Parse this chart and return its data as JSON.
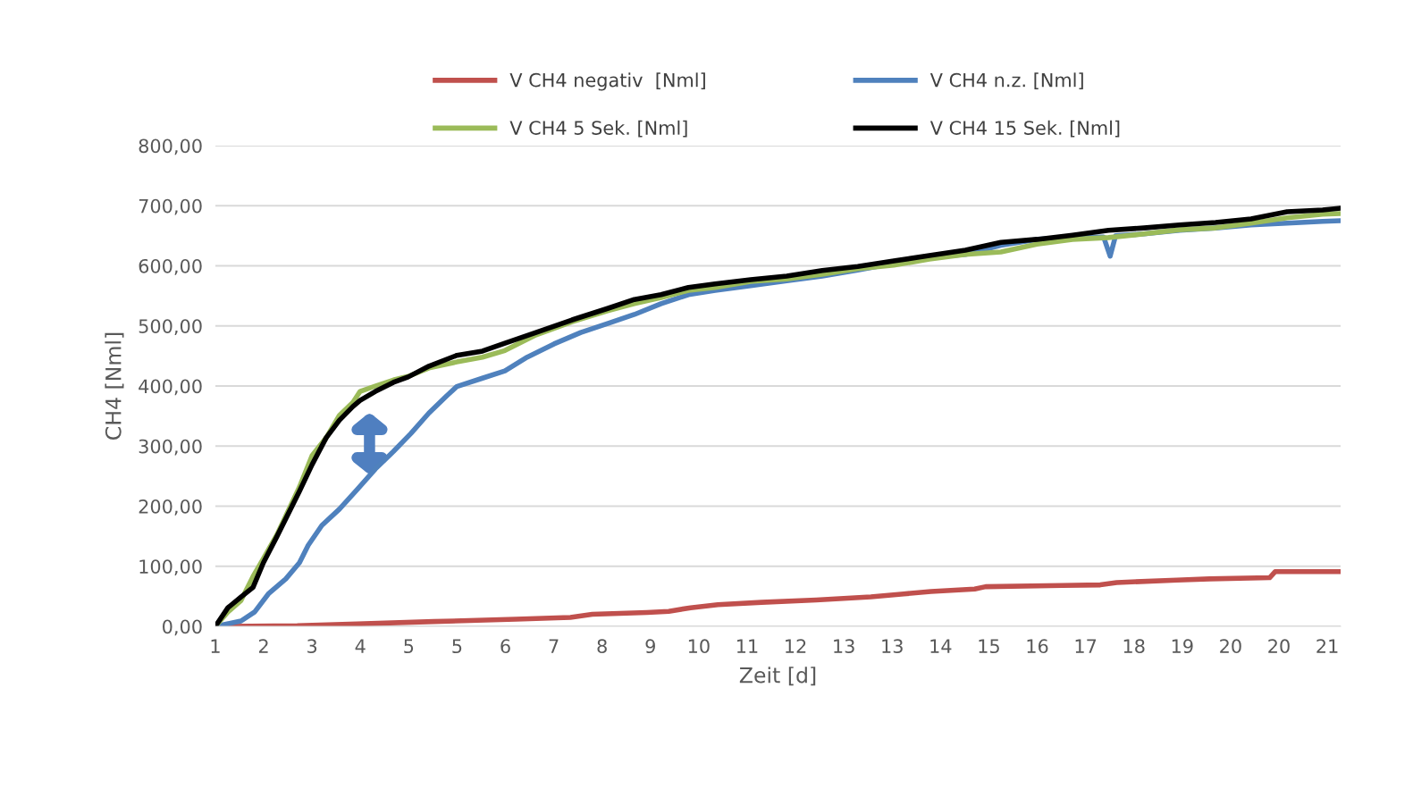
{
  "chart_data": {
    "type": "line",
    "xlabel": "Zeit [d]",
    "ylabel": "CH4 [Nml]",
    "xlim": [
      1,
      21.6
    ],
    "ylim": [
      0,
      800
    ],
    "xticks": [
      {
        "value": 1,
        "label": "1"
      },
      {
        "value": 1.885,
        "label": "2"
      },
      {
        "value": 2.77,
        "label": "3"
      },
      {
        "value": 3.655,
        "label": "4"
      },
      {
        "value": 4.54,
        "label": "5"
      },
      {
        "value": 5.425,
        "label": "5"
      },
      {
        "value": 6.31,
        "label": "6"
      },
      {
        "value": 7.195,
        "label": "7"
      },
      {
        "value": 8.08,
        "label": "8"
      },
      {
        "value": 8.965,
        "label": "9"
      },
      {
        "value": 9.85,
        "label": "10"
      },
      {
        "value": 10.735,
        "label": "11"
      },
      {
        "value": 11.62,
        "label": "12"
      },
      {
        "value": 12.505,
        "label": "13"
      },
      {
        "value": 13.39,
        "label": "13"
      },
      {
        "value": 14.275,
        "label": "14"
      },
      {
        "value": 15.16,
        "label": "15"
      },
      {
        "value": 16.045,
        "label": "16"
      },
      {
        "value": 16.93,
        "label": "17"
      },
      {
        "value": 17.815,
        "label": "18"
      },
      {
        "value": 18.7,
        "label": "19"
      },
      {
        "value": 19.585,
        "label": "20"
      },
      {
        "value": 20.47,
        "label": "20"
      },
      {
        "value": 21.355,
        "label": "21"
      }
    ],
    "yticks": [
      {
        "value": 0,
        "label": "0,00"
      },
      {
        "value": 100,
        "label": "100,00"
      },
      {
        "value": 200,
        "label": "200,00"
      },
      {
        "value": 300,
        "label": "300,00"
      },
      {
        "value": 400,
        "label": "400,00"
      },
      {
        "value": 500,
        "label": "500,00"
      },
      {
        "value": 600,
        "label": "600,00"
      },
      {
        "value": 700,
        "label": "700,00"
      },
      {
        "value": 800,
        "label": "800,00"
      }
    ],
    "grid": "y",
    "legend": "top",
    "marker": "none",
    "line_style": "solid",
    "series": [
      {
        "name": "V CH4 negativ  [Nml]",
        "color": "#c0504d",
        "x": [
          1,
          2.5,
          3.6,
          5,
          6.5,
          7.5,
          7.9,
          8.9,
          9.3,
          9.7,
          10.2,
          11,
          12,
          13,
          13.6,
          14.1,
          14.9,
          15.1,
          16.5,
          17.2,
          17.5,
          18.6,
          19.2,
          20.3,
          20.4,
          21.6
        ],
        "values": [
          0,
          1,
          4,
          8,
          12,
          15,
          20,
          23,
          25,
          31,
          36,
          40,
          44,
          49,
          54,
          58,
          62,
          66,
          68,
          69,
          73,
          77,
          79,
          81,
          91,
          91
        ]
      },
      {
        "name": "V CH4 n.z. [Nml]",
        "color": "#4f81bd",
        "x": [
          1,
          1.47,
          1.72,
          1.97,
          2.29,
          2.54,
          2.7,
          2.95,
          3.27,
          3.6,
          3.93,
          4.26,
          4.58,
          4.91,
          5.24,
          5.42,
          5.89,
          6.3,
          6.71,
          7.2,
          7.69,
          8.18,
          8.67,
          9.16,
          9.66,
          10.15,
          10.8,
          11.46,
          12.11,
          12.76,
          13.42,
          14.07,
          14.73,
          15.38,
          16.04,
          16.69,
          17.26,
          17.38,
          17.48,
          18.0,
          18.65,
          19.31,
          19.96,
          20.62,
          21.27,
          21.6
        ],
        "values": [
          0,
          9,
          24,
          54,
          79,
          106,
          135,
          168,
          195,
          228,
          262,
          291,
          321,
          355,
          384,
          399,
          413,
          425,
          448,
          470,
          489,
          504,
          519,
          537,
          552,
          559,
          567,
          575,
          583,
          593,
          604,
          614,
          619,
          634,
          644,
          647,
          648,
          616,
          650,
          653,
          659,
          663,
          668,
          671,
          674,
          675
        ]
      },
      {
        "name": "V CH4 5 Sek. [Nml]",
        "color": "#9bbb59",
        "x": [
          1,
          1.23,
          1.47,
          1.69,
          1.88,
          2.13,
          2.54,
          2.77,
          3.03,
          3.27,
          3.52,
          3.65,
          3.93,
          4.26,
          4.53,
          4.91,
          5.42,
          5.89,
          6.3,
          6.87,
          7.53,
          8.18,
          8.67,
          9.16,
          9.66,
          10.15,
          10.8,
          11.46,
          12.11,
          12.76,
          13.42,
          14.07,
          14.73,
          15.38,
          16.04,
          16.69,
          17.35,
          18.0,
          18.65,
          19.31,
          19.96,
          20.62,
          21.27,
          21.6
        ],
        "values": [
          0,
          24,
          43,
          83,
          113,
          153,
          232,
          284,
          314,
          351,
          373,
          391,
          400,
          410,
          416,
          430,
          440,
          448,
          459,
          485,
          507,
          525,
          537,
          547,
          559,
          564,
          574,
          578,
          586,
          595,
          601,
          611,
          619,
          623,
          636,
          644,
          647,
          653,
          660,
          663,
          671,
          680,
          686,
          687
        ]
      },
      {
        "name": "V CH4 15 Sek. [Nml]",
        "color": "#000000",
        "x": [
          1,
          1.23,
          1.47,
          1.69,
          1.88,
          2.13,
          2.54,
          2.77,
          3.03,
          3.27,
          3.52,
          3.65,
          3.93,
          4.26,
          4.53,
          4.91,
          5.42,
          5.89,
          6.3,
          6.87,
          7.53,
          8.18,
          8.67,
          9.16,
          9.66,
          10.15,
          10.8,
          11.46,
          12.11,
          12.76,
          13.42,
          14.07,
          14.73,
          15.38,
          16.04,
          16.69,
          17.35,
          18.0,
          18.65,
          19.31,
          19.96,
          20.62,
          21.27,
          21.6
        ],
        "values": [
          0,
          31,
          49,
          65,
          106,
          150,
          225,
          269,
          314,
          343,
          366,
          376,
          391,
          406,
          415,
          433,
          451,
          458,
          471,
          489,
          510,
          529,
          544,
          552,
          564,
          570,
          577,
          583,
          592,
          599,
          608,
          617,
          626,
          639,
          644,
          651,
          659,
          663,
          668,
          672,
          678,
          690,
          693,
          696
        ]
      }
    ]
  }
}
